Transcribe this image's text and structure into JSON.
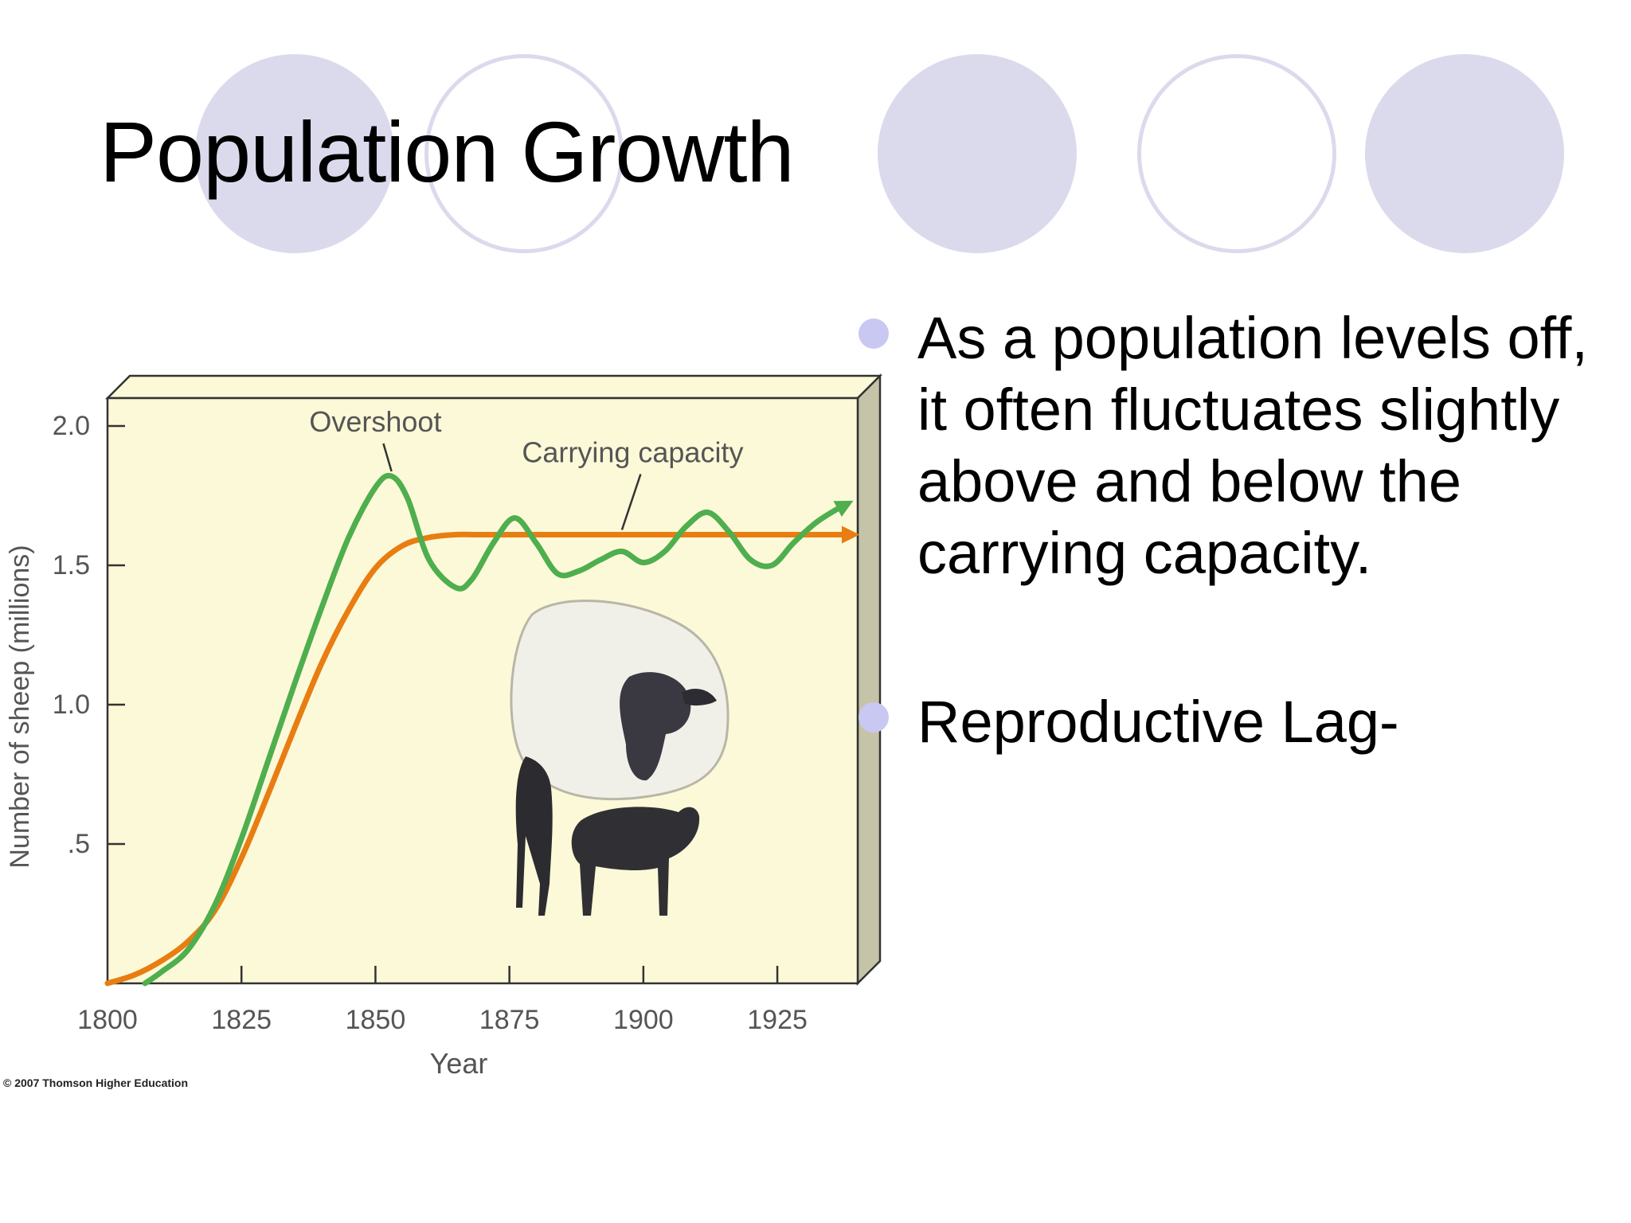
{
  "slide": {
    "title": "Population Growth",
    "bullets": [
      "As a population levels off, it often fluctuates slightly above and below the carrying capacity.",
      "Reproductive Lag-"
    ],
    "copyright": "© 2007 Thomson Higher Education"
  },
  "colors": {
    "decor_circle": "#dbdaed",
    "bullet": "#c9c8f2",
    "plot_bg": "#fcf9d8",
    "box_side": "#c6c4a8",
    "overshoot_line": "#4fae4e",
    "carrying_line": "#e87d12"
  },
  "chart_data": {
    "type": "line",
    "xlabel": "Year",
    "ylabel": "Number of sheep (millions)",
    "xlim": [
      1800,
      1940
    ],
    "ylim": [
      0,
      2.1
    ],
    "x_ticks": [
      1800,
      1825,
      1850,
      1875,
      1900,
      1925
    ],
    "x_tick_labels": [
      "1800",
      "1825",
      "1850",
      "1875",
      "1900",
      "1925"
    ],
    "y_ticks": [
      0.5,
      1.0,
      1.5,
      2.0
    ],
    "y_tick_labels": [
      ".5",
      "1.0",
      "1.5",
      "2.0"
    ],
    "grid": false,
    "series": [
      {
        "name": "Carrying capacity",
        "color": "#e87d12",
        "x": [
          1800,
          1805,
          1810,
          1815,
          1820,
          1825,
          1830,
          1835,
          1840,
          1845,
          1850,
          1855,
          1860,
          1865,
          1870,
          1880,
          1890,
          1900,
          1910,
          1920,
          1930,
          1939
        ],
        "y": [
          0.0,
          0.03,
          0.08,
          0.15,
          0.26,
          0.45,
          0.68,
          0.92,
          1.15,
          1.34,
          1.49,
          1.57,
          1.6,
          1.61,
          1.61,
          1.61,
          1.61,
          1.61,
          1.61,
          1.61,
          1.61,
          1.61
        ]
      },
      {
        "name": "Overshoot",
        "color": "#4fae4e",
        "x": [
          1807,
          1810,
          1815,
          1820,
          1825,
          1830,
          1835,
          1840,
          1845,
          1850,
          1853,
          1856,
          1860,
          1865,
          1868,
          1872,
          1876,
          1880,
          1884,
          1888,
          1892,
          1896,
          1900,
          1904,
          1908,
          1912,
          1916,
          1920,
          1924,
          1928,
          1932,
          1936,
          1938
        ],
        "y": [
          0.0,
          0.04,
          0.12,
          0.28,
          0.52,
          0.8,
          1.08,
          1.35,
          1.6,
          1.78,
          1.82,
          1.74,
          1.52,
          1.42,
          1.45,
          1.58,
          1.67,
          1.58,
          1.47,
          1.48,
          1.52,
          1.55,
          1.51,
          1.55,
          1.64,
          1.69,
          1.62,
          1.52,
          1.5,
          1.58,
          1.65,
          1.7,
          1.72
        ]
      }
    ],
    "annotations": [
      {
        "text": "Overshoot",
        "x": 1850,
        "y": 1.98,
        "target_x": 1853,
        "target_y": 1.82
      },
      {
        "text": "Carrying capacity",
        "x": 1898,
        "y": 1.87,
        "target_x": 1896,
        "target_y": 1.61
      }
    ]
  }
}
